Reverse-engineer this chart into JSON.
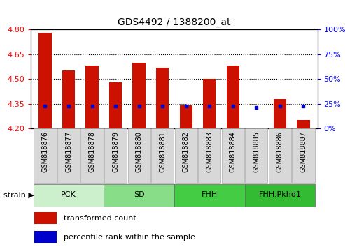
{
  "title": "GDS4492 / 1388200_at",
  "samples": [
    "GSM818876",
    "GSM818877",
    "GSM818878",
    "GSM818879",
    "GSM818880",
    "GSM818881",
    "GSM818882",
    "GSM818883",
    "GSM818884",
    "GSM818885",
    "GSM818886",
    "GSM818887"
  ],
  "transformed_counts": [
    4.78,
    4.55,
    4.58,
    4.48,
    4.6,
    4.57,
    4.34,
    4.5,
    4.58,
    4.14,
    4.38,
    4.25
  ],
  "percentile_values": [
    4.337,
    4.338,
    4.338,
    4.337,
    4.337,
    4.338,
    4.337,
    4.337,
    4.337,
    4.328,
    4.337,
    4.337
  ],
  "groups": [
    {
      "label": "PCK",
      "start": 0,
      "end": 3,
      "color": "#ccf0cc"
    },
    {
      "label": "SD",
      "start": 3,
      "end": 6,
      "color": "#88dd88"
    },
    {
      "label": "FHH",
      "start": 6,
      "end": 9,
      "color": "#44cc44"
    },
    {
      "label": "FHH.Pkhd1",
      "start": 9,
      "end": 12,
      "color": "#33bb33"
    }
  ],
  "ylim_left": [
    4.2,
    4.8
  ],
  "ylim_right": [
    0,
    100
  ],
  "yticks_left": [
    4.2,
    4.35,
    4.5,
    4.65,
    4.8
  ],
  "yticks_right": [
    0,
    25,
    50,
    75,
    100
  ],
  "grid_values": [
    4.65,
    4.5,
    4.35
  ],
  "bar_color": "#cc1100",
  "dot_color": "#0000cc",
  "bar_width": 0.55,
  "bar_bottom": 4.2,
  "label_fontsize": 7,
  "title_fontsize": 10
}
